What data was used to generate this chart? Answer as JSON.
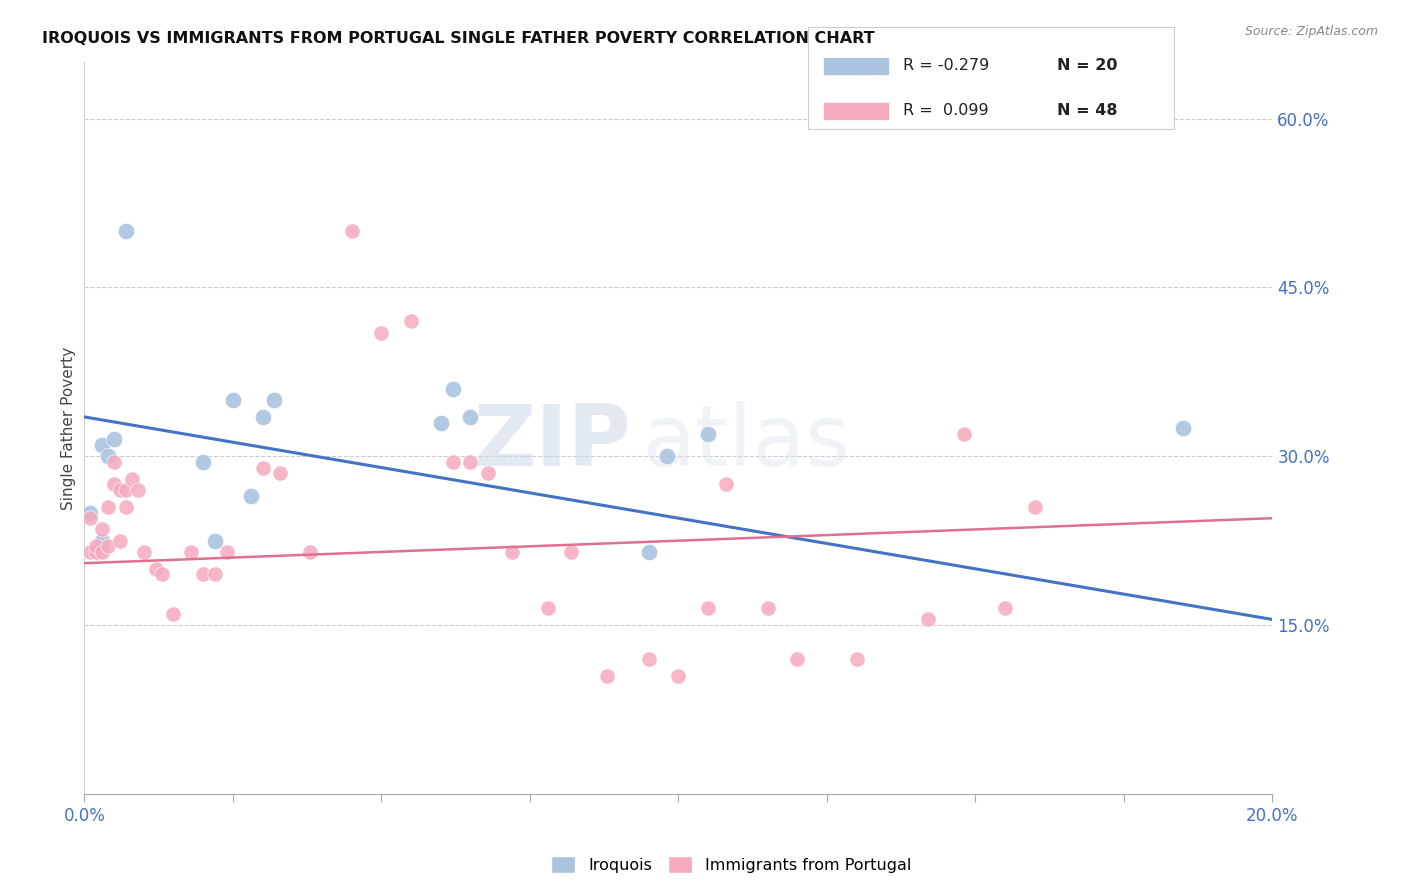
{
  "title": "IROQUOIS VS IMMIGRANTS FROM PORTUGAL SINGLE FATHER POVERTY CORRELATION CHART",
  "source": "Source: ZipAtlas.com",
  "ylabel": "Single Father Poverty",
  "right_yticks": [
    "60.0%",
    "45.0%",
    "30.0%",
    "15.0%"
  ],
  "right_ytick_vals": [
    0.6,
    0.45,
    0.3,
    0.15
  ],
  "legend_iroquois_r": "-0.279",
  "legend_iroquois_n": "20",
  "legend_portugal_r": "0.099",
  "legend_portugal_n": "48",
  "iroquois_color": "#aac4e0",
  "portugal_color": "#f5aabe",
  "iroquois_line_color": "#4472c4",
  "portugal_line_color": "#e07090",
  "background_color": "#ffffff",
  "watermark_zip": "ZIP",
  "watermark_atlas": "atlas",
  "iroquois_x": [
    0.001,
    0.002,
    0.003,
    0.003,
    0.004,
    0.005,
    0.007,
    0.02,
    0.022,
    0.025,
    0.028,
    0.03,
    0.032,
    0.06,
    0.062,
    0.065,
    0.095,
    0.098,
    0.105,
    0.185
  ],
  "iroquois_y": [
    0.25,
    0.215,
    0.225,
    0.31,
    0.3,
    0.315,
    0.5,
    0.295,
    0.225,
    0.35,
    0.265,
    0.335,
    0.35,
    0.33,
    0.36,
    0.335,
    0.215,
    0.3,
    0.32,
    0.325
  ],
  "portugal_x": [
    0.001,
    0.001,
    0.002,
    0.002,
    0.003,
    0.003,
    0.004,
    0.004,
    0.005,
    0.005,
    0.006,
    0.006,
    0.007,
    0.007,
    0.008,
    0.009,
    0.01,
    0.012,
    0.013,
    0.015,
    0.018,
    0.02,
    0.022,
    0.024,
    0.03,
    0.033,
    0.038,
    0.045,
    0.05,
    0.055,
    0.062,
    0.065,
    0.068,
    0.072,
    0.078,
    0.082,
    0.088,
    0.095,
    0.1,
    0.105,
    0.108,
    0.115,
    0.12,
    0.13,
    0.142,
    0.148,
    0.155,
    0.16
  ],
  "portugal_y": [
    0.215,
    0.245,
    0.215,
    0.22,
    0.215,
    0.235,
    0.22,
    0.255,
    0.275,
    0.295,
    0.225,
    0.27,
    0.255,
    0.27,
    0.28,
    0.27,
    0.215,
    0.2,
    0.195,
    0.16,
    0.215,
    0.195,
    0.195,
    0.215,
    0.29,
    0.285,
    0.215,
    0.5,
    0.41,
    0.42,
    0.295,
    0.295,
    0.285,
    0.215,
    0.165,
    0.215,
    0.105,
    0.12,
    0.105,
    0.165,
    0.275,
    0.165,
    0.12,
    0.12,
    0.155,
    0.32,
    0.165,
    0.255
  ],
  "xlim": [
    0.0,
    0.2
  ],
  "ylim": [
    0.0,
    0.65
  ],
  "x_ticks": [
    0.0,
    0.025,
    0.05,
    0.075,
    0.1,
    0.125,
    0.15,
    0.175,
    0.2
  ],
  "iroquois_trend": [
    0.335,
    0.155
  ],
  "portugal_trend": [
    0.205,
    0.245
  ]
}
